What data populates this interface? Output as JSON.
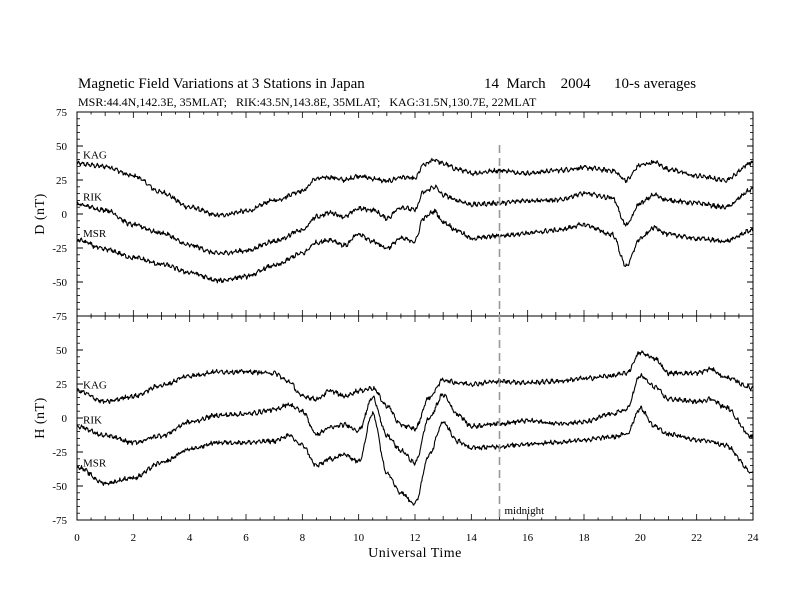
{
  "title": {
    "main": "Magnetic Field Variations at 3 Stations in Japan",
    "date": "14  March    2004",
    "averaging": "10-s averages",
    "stations_line": "MSR:44.4N,142.3E, 35MLAT;   RIK:43.5N,143.8E, 35MLAT;   KAG:31.5N,130.7E, 22MLAT"
  },
  "annotation": {
    "midnight": "midnight",
    "midnight_ut": 15
  },
  "chart_data": [
    {
      "type": "line",
      "ylabel": "D (nT)",
      "xlabel": "",
      "xlim": [
        0,
        24
      ],
      "ylim": [
        -75,
        75
      ],
      "yticks": [
        75,
        50,
        25,
        0,
        -25,
        -50,
        -75
      ],
      "x": [
        0,
        1,
        2,
        3,
        4,
        5,
        6,
        7,
        8,
        8.5,
        9,
        9.5,
        10,
        10.5,
        11,
        11.5,
        12,
        12.3,
        12.7,
        13,
        13.5,
        14,
        15,
        16,
        17,
        18,
        19,
        19.5,
        20,
        20.5,
        21,
        22,
        23,
        24
      ],
      "series": [
        {
          "name": "KAG",
          "values": [
            37,
            35,
            28,
            16,
            5,
            -1,
            2,
            10,
            17,
            26,
            27,
            25,
            28,
            26,
            24,
            27,
            26,
            36,
            40,
            37,
            33,
            30,
            32,
            30,
            32,
            34,
            32,
            25,
            36,
            38,
            33,
            28,
            25,
            38
          ]
        },
        {
          "name": "RIK",
          "values": [
            7,
            3,
            -8,
            -14,
            -23,
            -29,
            -27,
            -20,
            -12,
            -2,
            1,
            -2,
            4,
            3,
            -3,
            5,
            3,
            16,
            20,
            14,
            10,
            7,
            8,
            10,
            10,
            15,
            12,
            -8,
            8,
            14,
            10,
            8,
            5,
            18
          ]
        },
        {
          "name": "MSR",
          "values": [
            -19,
            -26,
            -32,
            -37,
            -43,
            -49,
            -46,
            -38,
            -29,
            -21,
            -19,
            -23,
            -15,
            -20,
            -25,
            -18,
            -20,
            -3,
            2,
            -6,
            -12,
            -18,
            -16,
            -14,
            -12,
            -8,
            -15,
            -38,
            -18,
            -10,
            -15,
            -18,
            -20,
            -12
          ]
        }
      ]
    },
    {
      "type": "line",
      "ylabel": "H (nT)",
      "xlabel": "Universal Time",
      "xlim": [
        0,
        24
      ],
      "ylim": [
        -75,
        75
      ],
      "yticks": [
        50,
        25,
        0,
        -25,
        -50,
        -75
      ],
      "xticks": [
        0,
        2,
        4,
        6,
        8,
        10,
        12,
        14,
        16,
        18,
        20,
        22,
        24
      ],
      "x": [
        0,
        1,
        2,
        3,
        4,
        5,
        6,
        7,
        7.5,
        8,
        8.5,
        9,
        9.5,
        10,
        10.5,
        11,
        11.5,
        12,
        12.5,
        13,
        13.5,
        14,
        15,
        16,
        17,
        18,
        19,
        19.5,
        20,
        20.5,
        21,
        22,
        22.5,
        23,
        24
      ],
      "series": [
        {
          "name": "KAG",
          "values": [
            20,
            12,
            16,
            24,
            31,
            34,
            34,
            33,
            27,
            16,
            14,
            20,
            16,
            20,
            22,
            9,
            -5,
            -8,
            15,
            28,
            26,
            25,
            27,
            26,
            27,
            29,
            31,
            33,
            48,
            44,
            33,
            33,
            36,
            30,
            22
          ]
        },
        {
          "name": "RIK",
          "values": [
            -6,
            -13,
            -18,
            -13,
            -3,
            2,
            3,
            6,
            10,
            5,
            -12,
            -7,
            -5,
            -9,
            15,
            -13,
            -24,
            -33,
            0,
            17,
            3,
            -6,
            -4,
            -2,
            -4,
            -3,
            3,
            6,
            31,
            23,
            14,
            12,
            14,
            8,
            -14
          ]
        },
        {
          "name": "MSR",
          "values": [
            -36,
            -48,
            -44,
            -33,
            -23,
            -18,
            -18,
            -17,
            -13,
            -20,
            -35,
            -30,
            -27,
            -32,
            3,
            -40,
            -55,
            -63,
            -27,
            -3,
            -17,
            -22,
            -21,
            -19,
            -18,
            -16,
            -14,
            -12,
            7,
            -6,
            -12,
            -16,
            -17,
            -20,
            -40
          ]
        }
      ]
    }
  ]
}
